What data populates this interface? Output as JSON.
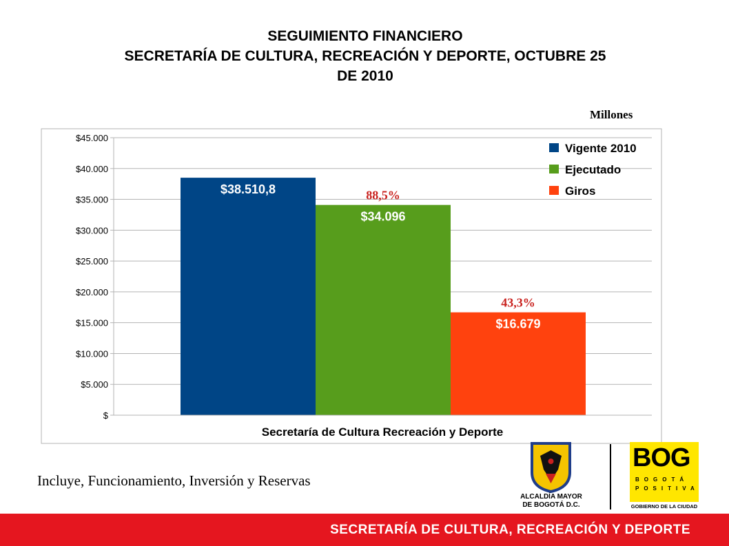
{
  "title_lines": [
    "SEGUIMIENTO FINANCIERO",
    "SECRETARÍA DE CULTURA, RECREACIÓN Y DEPORTE,  OCTUBRE 25",
    "DE 2010"
  ],
  "unit_label": "Millones",
  "chart_data": {
    "type": "bar",
    "title": "",
    "xlabel": "Secretaría de Cultura Recreación y Deporte",
    "ylabel": "",
    "ylim": [
      0,
      45000
    ],
    "y_ticks": [
      "$",
      "$5.000",
      "$10.000",
      "$15.000",
      "$20.000",
      "$25.000",
      "$30.000",
      "$35.000",
      "$40.000",
      "$45.000"
    ],
    "grid": true,
    "legend_position": "top-right",
    "series": [
      {
        "name": "Vigente 2010",
        "values": [
          38510.8
        ],
        "label": "$38.510,8",
        "color": "#004586",
        "annotation": ""
      },
      {
        "name": "Ejecutado",
        "values": [
          34096
        ],
        "label": "$34.096",
        "color": "#579d1c",
        "annotation": "88,5%"
      },
      {
        "name": "Giros",
        "values": [
          16679
        ],
        "label": "$16.679",
        "color": "#ff420e",
        "annotation": "43,3%"
      }
    ],
    "annotation_color": "#c9211e"
  },
  "footnote": "Incluye, Funcionamiento, Inversión y Reservas",
  "logo_alcaldia": {
    "line1": "ALCALDÍA MAYOR",
    "line2": "DE BOGOTÁ D.C."
  },
  "logo_bog": {
    "big": "BOG",
    "line1": "BOGOTÁ",
    "line2": "POSITIVA",
    "caption": "GOBIERNO DE LA CIUDAD"
  },
  "footer_text": "SECRETARÍA DE CULTURA, RECREACIÓN Y DEPORTE"
}
